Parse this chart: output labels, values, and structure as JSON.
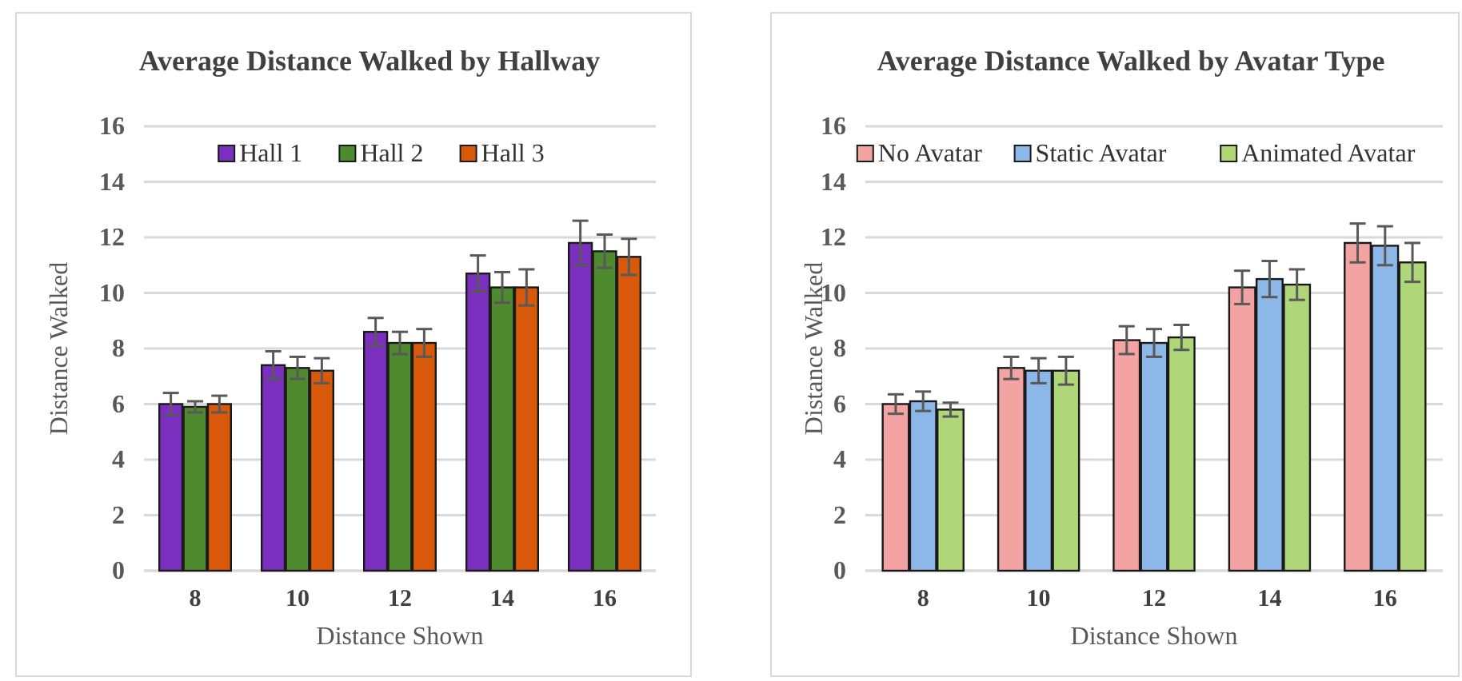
{
  "chart_data": [
    {
      "type": "bar",
      "title": "Average Distance Walked by Hallway",
      "xlabel": "Distance Shown",
      "ylabel": "Distance Walked",
      "categories": [
        "8",
        "10",
        "12",
        "14",
        "16"
      ],
      "ylim": [
        0,
        16
      ],
      "yticks": [
        0,
        2,
        4,
        6,
        8,
        10,
        12,
        14,
        16
      ],
      "grid": "y",
      "legend": "top",
      "series": [
        {
          "name": "Hall 1",
          "color": "#7b2fbf",
          "values": [
            6.0,
            7.4,
            8.6,
            10.7,
            11.8
          ],
          "errors": [
            0.4,
            0.5,
            0.5,
            0.65,
            0.8
          ]
        },
        {
          "name": "Hall 2",
          "color": "#4e8a2e",
          "values": [
            5.9,
            7.3,
            8.2,
            10.2,
            11.5
          ],
          "errors": [
            0.2,
            0.4,
            0.4,
            0.55,
            0.6
          ]
        },
        {
          "name": "Hall 3",
          "color": "#d9590a",
          "values": [
            6.0,
            7.2,
            8.2,
            10.2,
            11.3
          ],
          "errors": [
            0.3,
            0.45,
            0.5,
            0.65,
            0.65
          ]
        }
      ]
    },
    {
      "type": "bar",
      "title": "Average Distance Walked by Avatar Type",
      "xlabel": "Distance Shown",
      "ylabel": "Distance Walked",
      "categories": [
        "8",
        "10",
        "12",
        "14",
        "16"
      ],
      "ylim": [
        0,
        16
      ],
      "yticks": [
        0,
        2,
        4,
        6,
        8,
        10,
        12,
        14,
        16
      ],
      "grid": "y",
      "legend": "top",
      "series": [
        {
          "name": "No Avatar",
          "color": "#f4a3a3",
          "values": [
            6.0,
            7.3,
            8.3,
            10.2,
            11.8
          ],
          "errors": [
            0.35,
            0.4,
            0.5,
            0.6,
            0.7
          ]
        },
        {
          "name": "Static Avatar",
          "color": "#8bb8e8",
          "values": [
            6.1,
            7.2,
            8.2,
            10.5,
            11.7
          ],
          "errors": [
            0.35,
            0.45,
            0.5,
            0.65,
            0.7
          ]
        },
        {
          "name": "Animated Avatar",
          "color": "#b0d67a",
          "values": [
            5.8,
            7.2,
            8.4,
            10.3,
            11.1
          ],
          "errors": [
            0.25,
            0.5,
            0.45,
            0.55,
            0.7
          ]
        }
      ]
    }
  ]
}
